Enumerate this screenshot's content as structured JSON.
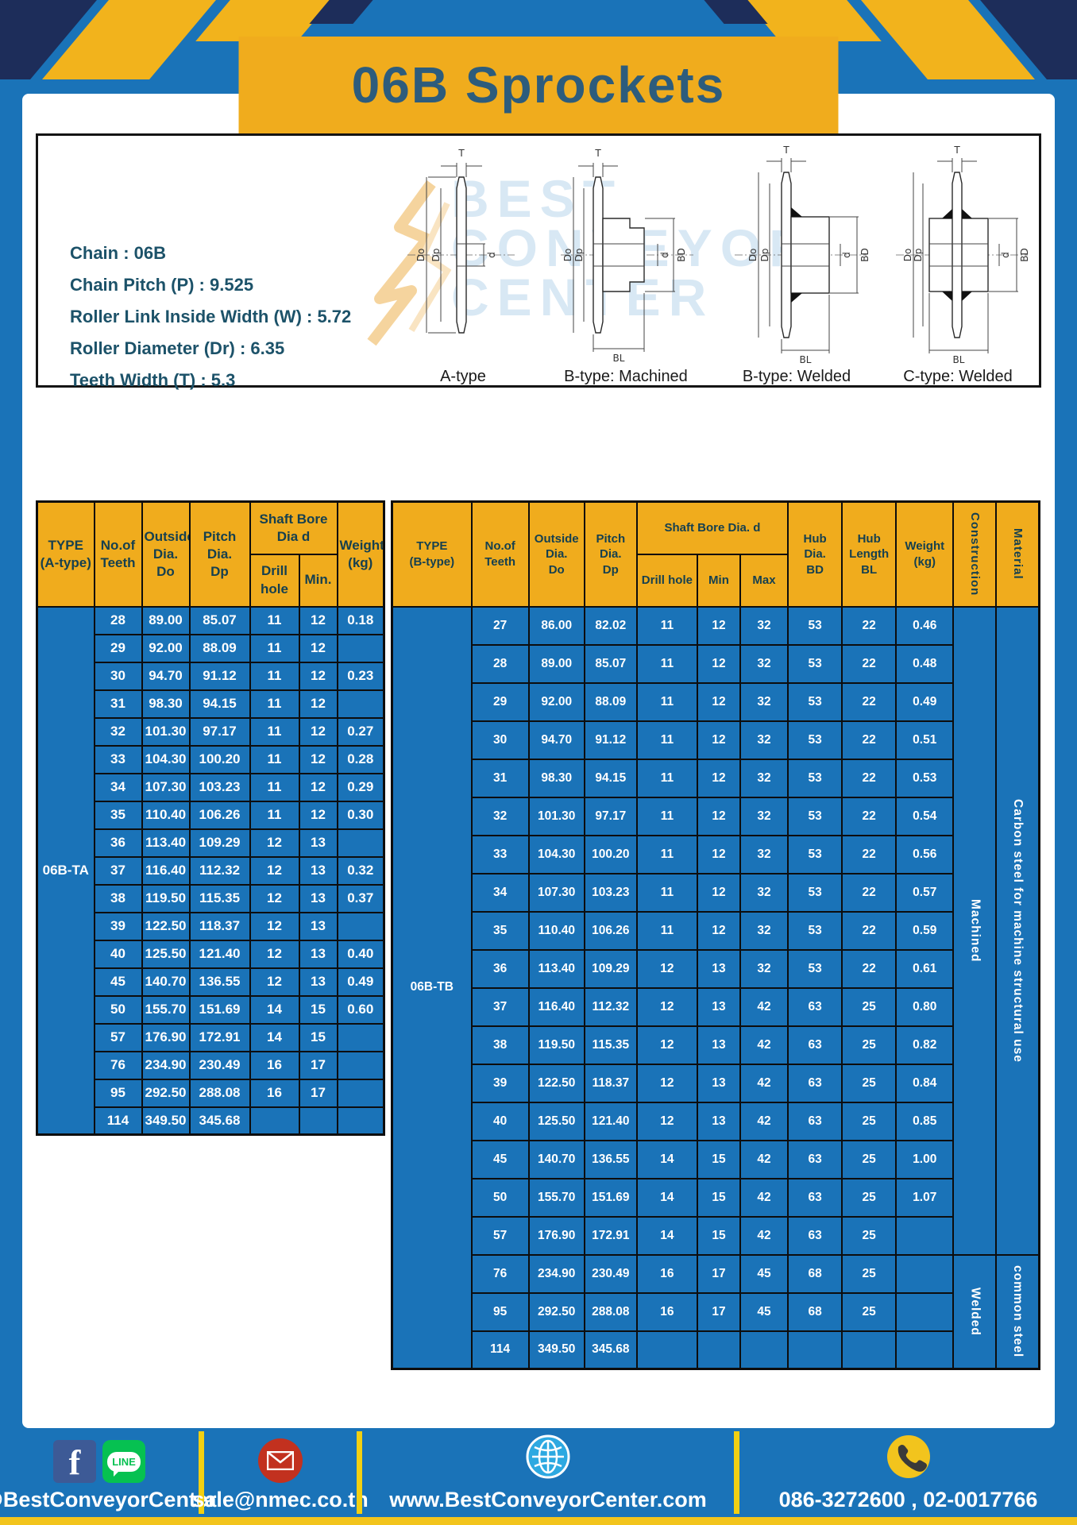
{
  "header": {
    "title": "06B Sprockets"
  },
  "specs": [
    "Chain : 06B",
    "Chain Pitch (P) : 9.525",
    "Roller Link Inside Width (W) : 5.72",
    "Roller Diameter (Dr) : 6.35",
    "Teeth Width (T) : 5.3"
  ],
  "watermark": {
    "lines": [
      "BEST",
      "CONVEYOR",
      "CENTER"
    ]
  },
  "diagrams": [
    {
      "caption": "A-type",
      "t": "T",
      "do": "Do",
      "dp": "Dp",
      "d": "d"
    },
    {
      "caption": "B-type: Machined",
      "t": "T",
      "do": "Do",
      "dp": "Dp",
      "d": "d",
      "bd": "BD",
      "bl": "BL"
    },
    {
      "caption": "B-type: Welded",
      "t": "T",
      "do": "Do",
      "dp": "Dp",
      "d": "d",
      "bd": "BD",
      "bl": "BL"
    },
    {
      "caption": "C-type: Welded",
      "t": "T",
      "do": "Do",
      "dp": "Dp",
      "d": "d",
      "bd": "BD",
      "bl": "BL"
    }
  ],
  "table_a": {
    "headers": {
      "type": "TYPE\n(A-type)",
      "teeth": "No.of\nTeeth",
      "outside": "Outside\nDia.\nDo",
      "pitch": "Pitch Dia.\nDp",
      "shaft_bore": "Shaft Bore Dia d",
      "drill": "Drill hole",
      "min": "Min.",
      "weight": "Weight\n(kg)"
    },
    "type_label": "06B-TA",
    "rows": [
      [
        "28",
        "89.00",
        "85.07",
        "11",
        "12",
        "0.18"
      ],
      [
        "29",
        "92.00",
        "88.09",
        "11",
        "12",
        ""
      ],
      [
        "30",
        "94.70",
        "91.12",
        "11",
        "12",
        "0.23"
      ],
      [
        "31",
        "98.30",
        "94.15",
        "11",
        "12",
        ""
      ],
      [
        "32",
        "101.30",
        "97.17",
        "11",
        "12",
        "0.27"
      ],
      [
        "33",
        "104.30",
        "100.20",
        "11",
        "12",
        "0.28"
      ],
      [
        "34",
        "107.30",
        "103.23",
        "11",
        "12",
        "0.29"
      ],
      [
        "35",
        "110.40",
        "106.26",
        "11",
        "12",
        "0.30"
      ],
      [
        "36",
        "113.40",
        "109.29",
        "12",
        "13",
        ""
      ],
      [
        "37",
        "116.40",
        "112.32",
        "12",
        "13",
        "0.32"
      ],
      [
        "38",
        "119.50",
        "115.35",
        "12",
        "13",
        "0.37"
      ],
      [
        "39",
        "122.50",
        "118.37",
        "12",
        "13",
        ""
      ],
      [
        "40",
        "125.50",
        "121.40",
        "12",
        "13",
        "0.40"
      ],
      [
        "45",
        "140.70",
        "136.55",
        "12",
        "13",
        "0.49"
      ],
      [
        "50",
        "155.70",
        "151.69",
        "14",
        "15",
        "0.60"
      ],
      [
        "57",
        "176.90",
        "172.91",
        "14",
        "15",
        ""
      ],
      [
        "76",
        "234.90",
        "230.49",
        "16",
        "17",
        ""
      ],
      [
        "95",
        "292.50",
        "288.08",
        "16",
        "17",
        ""
      ],
      [
        "114",
        "349.50",
        "345.68",
        "",
        "",
        ""
      ]
    ]
  },
  "table_b": {
    "headers": {
      "type": "TYPE\n(B-type)",
      "teeth": "No.of\nTeeth",
      "outside": "Outside\nDia.\nDo",
      "pitch": "Pitch\nDia.\nDp",
      "shaft_bore": "Shaft Bore Dia. d",
      "drill": "Drill hole",
      "min": "Min",
      "max": "Max",
      "hub_dia": "Hub\nDia.\nBD",
      "hub_length": "Hub\nLength\nBL",
      "weight": "Weight\n(kg)",
      "construction": "Construction",
      "material": "Material"
    },
    "type_label": "06B-TB",
    "construction": {
      "machined": "Machined",
      "welded": "Welded",
      "machined_rows": 17,
      "welded_rows": 3
    },
    "material": {
      "top": "Carbon steel for machine structural use",
      "bottom": "common steel"
    },
    "rows": [
      [
        "27",
        "86.00",
        "82.02",
        "11",
        "12",
        "32",
        "53",
        "22",
        "0.46"
      ],
      [
        "28",
        "89.00",
        "85.07",
        "11",
        "12",
        "32",
        "53",
        "22",
        "0.48"
      ],
      [
        "29",
        "92.00",
        "88.09",
        "11",
        "12",
        "32",
        "53",
        "22",
        "0.49"
      ],
      [
        "30",
        "94.70",
        "91.12",
        "11",
        "12",
        "32",
        "53",
        "22",
        "0.51"
      ],
      [
        "31",
        "98.30",
        "94.15",
        "11",
        "12",
        "32",
        "53",
        "22",
        "0.53"
      ],
      [
        "32",
        "101.30",
        "97.17",
        "11",
        "12",
        "32",
        "53",
        "22",
        "0.54"
      ],
      [
        "33",
        "104.30",
        "100.20",
        "11",
        "12",
        "32",
        "53",
        "22",
        "0.56"
      ],
      [
        "34",
        "107.30",
        "103.23",
        "11",
        "12",
        "32",
        "53",
        "22",
        "0.57"
      ],
      [
        "35",
        "110.40",
        "106.26",
        "11",
        "12",
        "32",
        "53",
        "22",
        "0.59"
      ],
      [
        "36",
        "113.40",
        "109.29",
        "12",
        "13",
        "32",
        "53",
        "22",
        "0.61"
      ],
      [
        "37",
        "116.40",
        "112.32",
        "12",
        "13",
        "42",
        "63",
        "25",
        "0.80"
      ],
      [
        "38",
        "119.50",
        "115.35",
        "12",
        "13",
        "42",
        "63",
        "25",
        "0.82"
      ],
      [
        "39",
        "122.50",
        "118.37",
        "12",
        "13",
        "42",
        "63",
        "25",
        "0.84"
      ],
      [
        "40",
        "125.50",
        "121.40",
        "12",
        "13",
        "42",
        "63",
        "25",
        "0.85"
      ],
      [
        "45",
        "140.70",
        "136.55",
        "14",
        "15",
        "42",
        "63",
        "25",
        "1.00"
      ],
      [
        "50",
        "155.70",
        "151.69",
        "14",
        "15",
        "42",
        "63",
        "25",
        "1.07"
      ],
      [
        "57",
        "176.90",
        "172.91",
        "14",
        "15",
        "42",
        "63",
        "25",
        ""
      ],
      [
        "76",
        "234.90",
        "230.49",
        "16",
        "17",
        "45",
        "68",
        "25",
        ""
      ],
      [
        "95",
        "292.50",
        "288.08",
        "16",
        "17",
        "45",
        "68",
        "25",
        ""
      ],
      [
        "114",
        "349.50",
        "345.68",
        "",
        "",
        "",
        "",
        "",
        ""
      ]
    ]
  },
  "footer": {
    "facebook_glyph": "f",
    "line_label": "LINE",
    "social_handle": "@BestConveyorCenter",
    "email": "sale@nmec.co.th",
    "website": "www.BestConveyorCenter.com",
    "phones": "086-3272600 , 02-0017766"
  },
  "colors": {
    "blue": "#1a73b8",
    "yellow": "#f0ac1d",
    "navy": "#1d2d5a",
    "title_text": "#2d5c7c",
    "header_text": "#16404f"
  }
}
